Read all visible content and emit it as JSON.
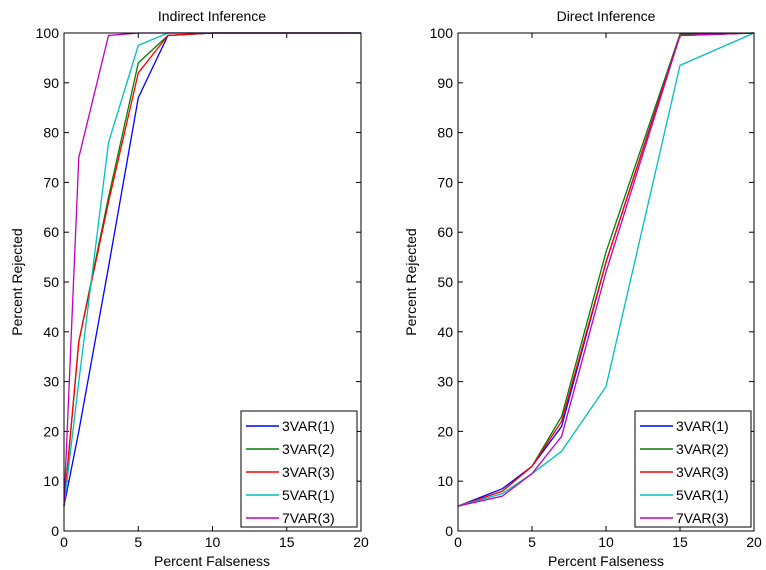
{
  "chart_data": [
    {
      "type": "line",
      "title": "Indirect Inference",
      "xlabel": "Percent Falseness",
      "ylabel": "Percent Rejected",
      "xlim": [
        0,
        20
      ],
      "ylim": [
        0,
        100
      ],
      "xticks": [
        0,
        5,
        10,
        15,
        20
      ],
      "yticks": [
        0,
        10,
        20,
        30,
        40,
        50,
        60,
        70,
        80,
        90,
        100
      ],
      "grid": false,
      "legend": "bottom-right",
      "series": [
        {
          "name": "3VAR(1)",
          "color": "#0000ff",
          "x": [
            0,
            1,
            3,
            5,
            7,
            10,
            15,
            20
          ],
          "y": [
            5,
            20,
            53,
            87,
            99.5,
            100,
            100,
            100
          ]
        },
        {
          "name": "3VAR(2)",
          "color": "#008000",
          "x": [
            0,
            1,
            3,
            5,
            7,
            10,
            15,
            20
          ],
          "y": [
            5,
            38,
            67,
            94,
            99.5,
            100,
            100,
            100
          ]
        },
        {
          "name": "3VAR(3)",
          "color": "#ff0000",
          "x": [
            0,
            1,
            3,
            5,
            7,
            10,
            15,
            20
          ],
          "y": [
            5,
            38,
            66,
            92,
            99.5,
            100,
            100,
            100
          ]
        },
        {
          "name": "5VAR(1)",
          "color": "#00bfbf",
          "x": [
            0,
            1,
            3,
            5,
            7,
            10,
            15,
            20
          ],
          "y": [
            5,
            30,
            78,
            97.5,
            100,
            100,
            100,
            100
          ]
        },
        {
          "name": "7VAR(3)",
          "color": "#bf00bf",
          "x": [
            0,
            1,
            3,
            5,
            7,
            10,
            15,
            20
          ],
          "y": [
            5,
            75,
            99.5,
            100,
            100,
            100,
            100,
            100
          ]
        }
      ]
    },
    {
      "type": "line",
      "title": "Direct Inference",
      "xlabel": "Percent Falseness",
      "ylabel": "Percent Rejected",
      "xlim": [
        0,
        20
      ],
      "ylim": [
        0,
        100
      ],
      "xticks": [
        0,
        5,
        10,
        15,
        20
      ],
      "yticks": [
        0,
        10,
        20,
        30,
        40,
        50,
        60,
        70,
        80,
        90,
        100
      ],
      "grid": false,
      "legend": "bottom-right",
      "series": [
        {
          "name": "3VAR(1)",
          "color": "#0000ff",
          "x": [
            0,
            3,
            5,
            7,
            10,
            15,
            20
          ],
          "y": [
            5,
            8.5,
            13,
            21,
            54,
            99.5,
            100
          ]
        },
        {
          "name": "3VAR(2)",
          "color": "#008000",
          "x": [
            0,
            3,
            5,
            7,
            10,
            15,
            20
          ],
          "y": [
            5,
            8,
            13,
            23,
            56,
            99.8,
            100
          ]
        },
        {
          "name": "3VAR(3)",
          "color": "#ff0000",
          "x": [
            0,
            3,
            5,
            7,
            10,
            15,
            20
          ],
          "y": [
            5,
            8,
            13,
            22,
            54,
            99.5,
            100
          ]
        },
        {
          "name": "5VAR(1)",
          "color": "#00bfbf",
          "x": [
            0,
            3,
            5,
            7,
            10,
            15,
            20
          ],
          "y": [
            5,
            7.5,
            11.5,
            16,
            29,
            93.5,
            100
          ]
        },
        {
          "name": "7VAR(3)",
          "color": "#bf00bf",
          "x": [
            0,
            3,
            5,
            7,
            10,
            15,
            20
          ],
          "y": [
            5,
            7,
            11.5,
            19,
            52,
            99.5,
            100
          ]
        }
      ]
    }
  ]
}
